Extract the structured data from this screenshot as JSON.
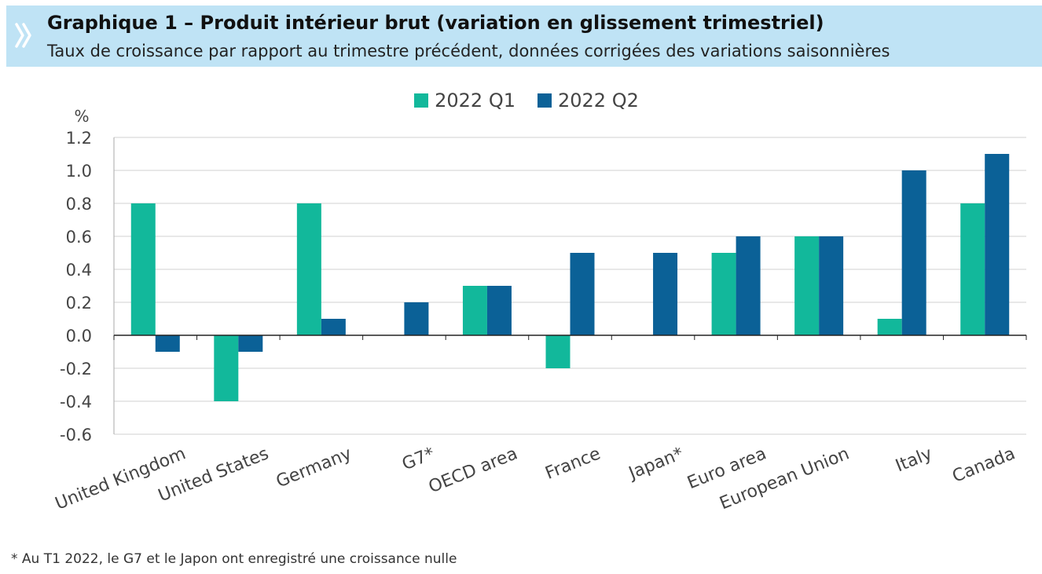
{
  "header": {
    "title": "Graphique 1 – Produit intérieur brut (variation en glissement trimestriel)",
    "subtitle": "Taux de croissance par rapport au trimestre précédent, données corrigées des variations saisonnières",
    "icon": "double-chevron-right-icon"
  },
  "colors": {
    "header_bg": "#bfe3f5",
    "q1": "#12b89b",
    "q2": "#0b6197"
  },
  "chart_data": {
    "type": "bar",
    "title": "",
    "ylabel": "%",
    "xlabel": "",
    "ylim": [
      -0.6,
      1.2
    ],
    "yticks": [
      "1.2",
      "1.0",
      "0.8",
      "0.6",
      "0.4",
      "0.2",
      "0.0",
      "-0.2",
      "-0.4",
      "-0.6"
    ],
    "grid": true,
    "legend_position": "top",
    "categories": [
      "United Kingdom",
      "United States",
      "Germany",
      "G7*",
      "OECD area",
      "France",
      "Japan*",
      "Euro area",
      "European Union",
      "Italy",
      "Canada"
    ],
    "series": [
      {
        "name": "2022 Q1",
        "color": "#12b89b",
        "values": [
          0.8,
          -0.4,
          0.8,
          0.0,
          0.3,
          -0.2,
          0.0,
          0.5,
          0.6,
          0.1,
          0.8
        ]
      },
      {
        "name": "2022 Q2",
        "color": "#0b6197",
        "values": [
          -0.1,
          -0.1,
          0.1,
          0.2,
          0.3,
          0.5,
          0.5,
          0.6,
          0.6,
          1.0,
          1.1
        ]
      }
    ]
  },
  "footnote": "* Au T1 2022, le G7 et le Japon ont enregistré une croissance nulle"
}
